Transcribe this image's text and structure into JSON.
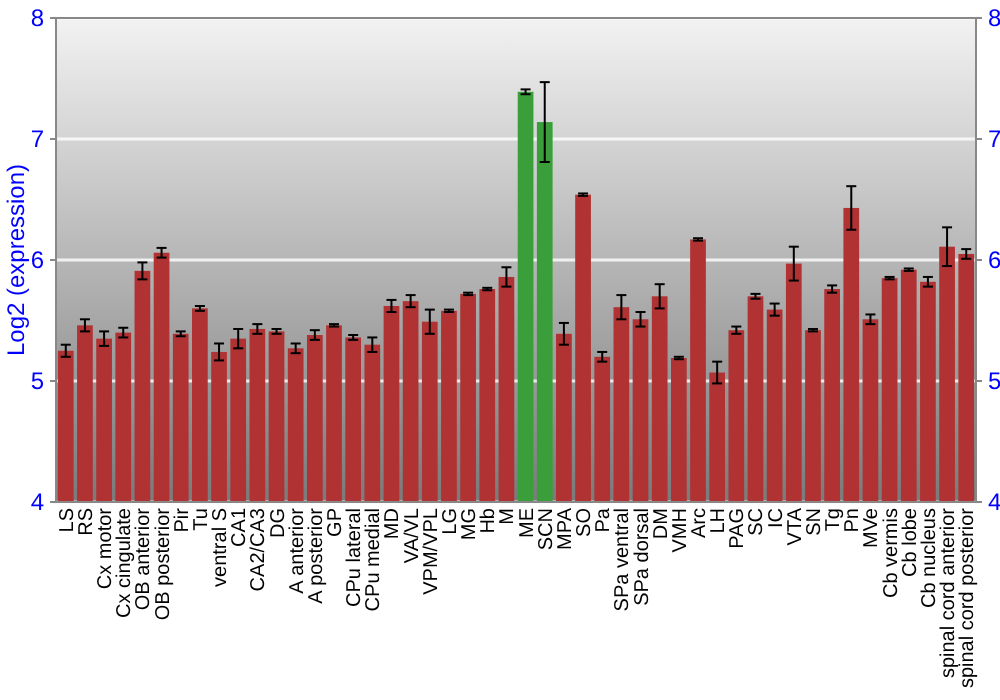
{
  "chart_data": {
    "type": "bar",
    "ylabel": "Log2 (expression)",
    "categories": [
      "LS",
      "RS",
      "Cx motor",
      "Cx cingulate",
      "OB anterior",
      "OB posterior",
      "Pir",
      "Tu",
      "ventral S",
      "CA1",
      "CA2/CA3",
      "DG",
      "A anterior",
      "A posterior",
      "GP",
      "CPu lateral",
      "CPu medial",
      "MD",
      "VA/VL",
      "VPM/VPL",
      "LG",
      "MG",
      "Hb",
      "M",
      "ME",
      "SCN",
      "MPA",
      "SO",
      "Pa",
      "SPa ventral",
      "SPa dorsal",
      "DM",
      "VMH",
      "Arc",
      "LH",
      "PAG",
      "SC",
      "IC",
      "VTA",
      "SN",
      "Tg",
      "Pn",
      "MVe",
      "Cb vermis",
      "Cb lobe",
      "Cb nucleus",
      "spinal cord anterior",
      "spinal cord posterior"
    ],
    "values": [
      5.25,
      5.46,
      5.35,
      5.4,
      5.91,
      6.06,
      5.39,
      5.6,
      5.24,
      5.35,
      5.43,
      5.41,
      5.27,
      5.38,
      5.46,
      5.36,
      5.3,
      5.62,
      5.66,
      5.49,
      5.58,
      5.72,
      5.76,
      5.86,
      7.39,
      7.14,
      5.39,
      6.54,
      5.2,
      5.61,
      5.51,
      5.7,
      5.19,
      6.17,
      5.07,
      5.42,
      5.7,
      5.59,
      5.97,
      5.42,
      5.76,
      6.43,
      5.51,
      5.85,
      5.92,
      5.82,
      6.11,
      6.05
    ],
    "errors": [
      0.05,
      0.05,
      0.06,
      0.04,
      0.07,
      0.04,
      0.02,
      0.02,
      0.07,
      0.08,
      0.04,
      0.02,
      0.04,
      0.04,
      0.01,
      0.02,
      0.06,
      0.05,
      0.05,
      0.1,
      0.01,
      0.01,
      0.01,
      0.08,
      0.02,
      0.33,
      0.09,
      0.01,
      0.04,
      0.1,
      0.06,
      0.1,
      0.01,
      0.01,
      0.09,
      0.03,
      0.02,
      0.05,
      0.14,
      0.01,
      0.03,
      0.18,
      0.04,
      0.01,
      0.01,
      0.04,
      0.16,
      0.04
    ],
    "colors": [
      "#b03232",
      "#b03232",
      "#b03232",
      "#b03232",
      "#b03232",
      "#b03232",
      "#b03232",
      "#b03232",
      "#b03232",
      "#b03232",
      "#b03232",
      "#b03232",
      "#b03232",
      "#b03232",
      "#b03232",
      "#b03232",
      "#b03232",
      "#b03232",
      "#b03232",
      "#b03232",
      "#b03232",
      "#b03232",
      "#b03232",
      "#b03232",
      "#3a9e3a",
      "#3a9e3a",
      "#b03232",
      "#b03232",
      "#b03232",
      "#b03232",
      "#b03232",
      "#b03232",
      "#b03232",
      "#b03232",
      "#b03232",
      "#b03232",
      "#b03232",
      "#b03232",
      "#b03232",
      "#b03232",
      "#b03232",
      "#b03232",
      "#b03232",
      "#b03232",
      "#b03232",
      "#b03232",
      "#b03232",
      "#b03232"
    ],
    "ylim": [
      4,
      8
    ],
    "yticks": [
      4,
      5,
      6,
      7,
      8
    ],
    "y2lim": [
      4,
      8
    ],
    "y2ticks": [
      4,
      5,
      6,
      7,
      8
    ],
    "grid": "y"
  }
}
